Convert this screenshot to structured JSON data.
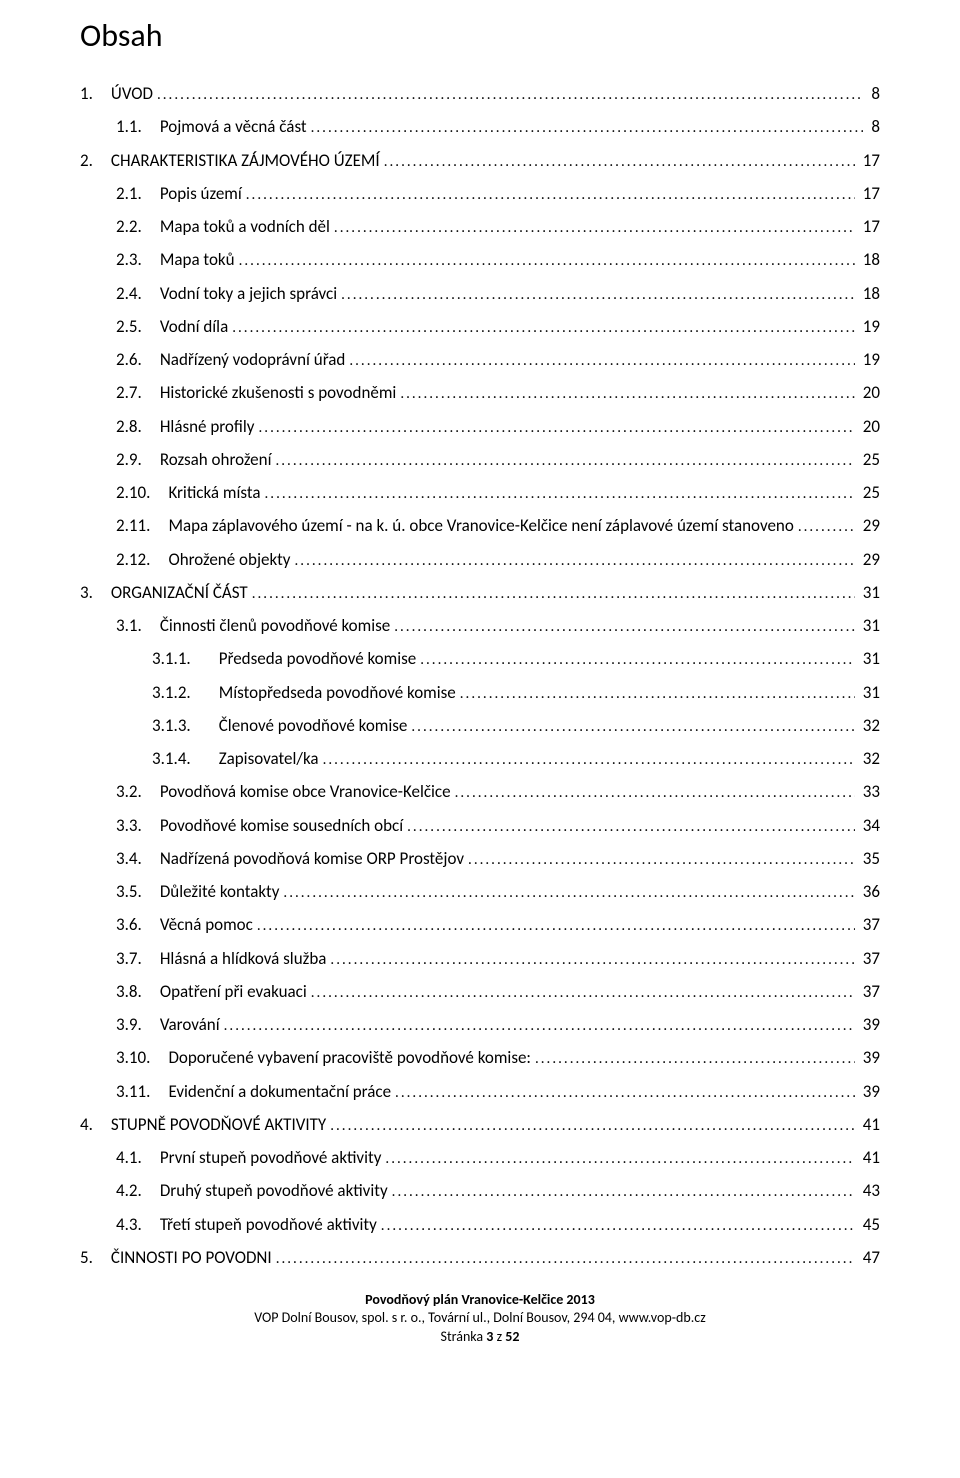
{
  "title": "Obsah",
  "toc": [
    {
      "level": 1,
      "num": "1.",
      "text": "ÚVOD",
      "page": "8"
    },
    {
      "level": 2,
      "num": "1.1.",
      "text": "Pojmová a věcná část",
      "page": "8"
    },
    {
      "level": 1,
      "num": "2.",
      "text": "CHARAKTERISTIKA ZÁJMOVÉHO ÚZEMÍ",
      "page": "17"
    },
    {
      "level": 2,
      "num": "2.1.",
      "text": "Popis území",
      "page": "17"
    },
    {
      "level": 2,
      "num": "2.2.",
      "text": "Mapa toků a vodních děl",
      "page": "17"
    },
    {
      "level": 2,
      "num": "2.3.",
      "text": "Mapa toků",
      "page": "18"
    },
    {
      "level": 2,
      "num": "2.4.",
      "text": "Vodní toky a jejich správci",
      "page": "18"
    },
    {
      "level": 2,
      "num": "2.5.",
      "text": "Vodní díla",
      "page": "19"
    },
    {
      "level": 2,
      "num": "2.6.",
      "text": "Nadřízený vodoprávní úřad",
      "page": "19"
    },
    {
      "level": 2,
      "num": "2.7.",
      "text": "Historické zkušenosti s povodněmi",
      "page": "20"
    },
    {
      "level": 2,
      "num": "2.8.",
      "text": "Hlásné profily",
      "page": "20"
    },
    {
      "level": 2,
      "num": "2.9.",
      "text": "Rozsah ohrožení",
      "page": "25"
    },
    {
      "level": 2,
      "num": "2.10.",
      "text": "Kritická místa",
      "page": "25"
    },
    {
      "level": 2,
      "num": "2.11.",
      "text": "Mapa záplavového území - na k. ú. obce Vranovice-Kelčice není záplavové území stanoveno",
      "page": "29"
    },
    {
      "level": 2,
      "num": "2.12.",
      "text": "Ohrožené objekty",
      "page": "29"
    },
    {
      "level": 1,
      "num": "3.",
      "text": "ORGANIZAČNÍ ČÁST",
      "page": "31"
    },
    {
      "level": 2,
      "num": "3.1.",
      "text": "Činnosti členů povodňové komise",
      "page": "31"
    },
    {
      "level": 3,
      "num": "3.1.1.",
      "text": "Předseda povodňové komise",
      "page": "31"
    },
    {
      "level": 3,
      "num": "3.1.2.",
      "text": "Místopředseda povodňové komise",
      "page": "31"
    },
    {
      "level": 3,
      "num": "3.1.3.",
      "text": "Členové povodňové komise",
      "page": "32"
    },
    {
      "level": 3,
      "num": "3.1.4.",
      "text": "Zapisovatel/ka",
      "page": "32"
    },
    {
      "level": 2,
      "num": "3.2.",
      "text": "Povodňová komise obce Vranovice-Kelčice",
      "page": "33"
    },
    {
      "level": 2,
      "num": "3.3.",
      "text": "Povodňové komise sousedních obcí",
      "page": "34"
    },
    {
      "level": 2,
      "num": "3.4.",
      "text": "Nadřízená povodňová komise ORP Prostějov",
      "page": "35"
    },
    {
      "level": 2,
      "num": "3.5.",
      "text": "Důležité kontakty",
      "page": "36"
    },
    {
      "level": 2,
      "num": "3.6.",
      "text": "Věcná pomoc",
      "page": "37"
    },
    {
      "level": 2,
      "num": "3.7.",
      "text": "Hlásná a hlídková služba",
      "page": "37"
    },
    {
      "level": 2,
      "num": "3.8.",
      "text": "Opatření při evakuaci",
      "page": "37"
    },
    {
      "level": 2,
      "num": "3.9.",
      "text": "Varování",
      "page": "39"
    },
    {
      "level": 2,
      "num": "3.10.",
      "text": "Doporučené vybavení pracoviště povodňové komise:",
      "page": "39"
    },
    {
      "level": 2,
      "num": "3.11.",
      "text": "Evidenční a dokumentační práce",
      "page": "39"
    },
    {
      "level": 1,
      "num": "4.",
      "text": "STUPNĚ POVODŇOVÉ AKTIVITY",
      "page": "41"
    },
    {
      "level": 2,
      "num": "4.1.",
      "text": "První stupeň povodňové aktivity",
      "page": "41"
    },
    {
      "level": 2,
      "num": "4.2.",
      "text": "Druhý stupeň povodňové aktivity",
      "page": "43"
    },
    {
      "level": 2,
      "num": "4.3.",
      "text": "Třetí stupeň povodňové aktivity",
      "page": "45"
    },
    {
      "level": 1,
      "num": "5.",
      "text": "ČINNOSTI PO POVODNI",
      "page": "47"
    }
  ],
  "footer": {
    "line1": "Povodňový plán Vranovice-Kelčice 2013",
    "line2": "VOP Dolní Bousov, spol. s r. o., Tovární ul., Dolní Bousov, 294 04, www.vop-db.cz",
    "line3_prefix": "Stránka ",
    "line3_page": "3",
    "line3_mid": " z ",
    "line3_total": "52"
  }
}
